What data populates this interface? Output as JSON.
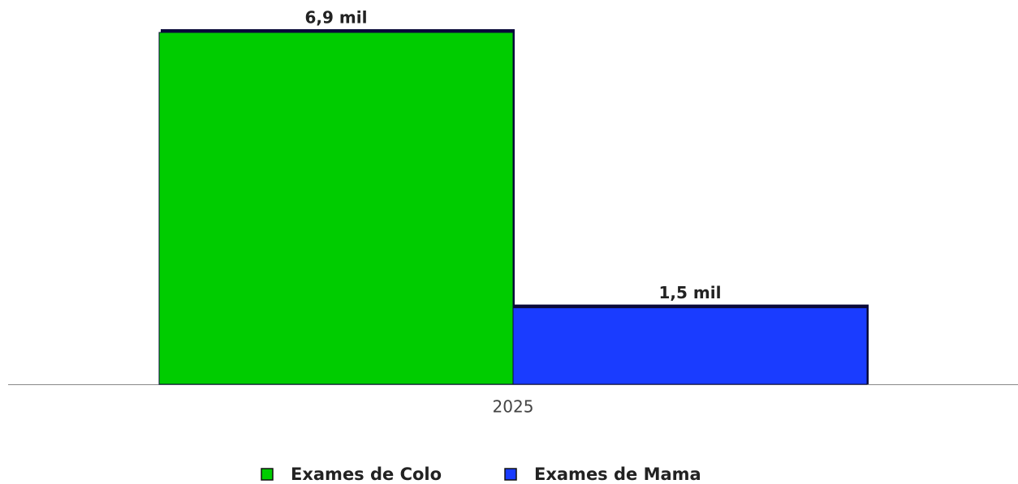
{
  "chart_data": {
    "type": "bar",
    "categories": [
      "2025"
    ],
    "series": [
      {
        "name": "Exames de Colo",
        "color": "#00cc00",
        "values": [
          6.9
        ],
        "value_labels": [
          "6,9 mil"
        ]
      },
      {
        "name": "Exames de Mama",
        "color": "#1a3cff",
        "values": [
          1.5
        ],
        "value_labels": [
          "1,5 mil"
        ]
      }
    ],
    "ylim": [
      0,
      7
    ],
    "legend": "bottom"
  }
}
